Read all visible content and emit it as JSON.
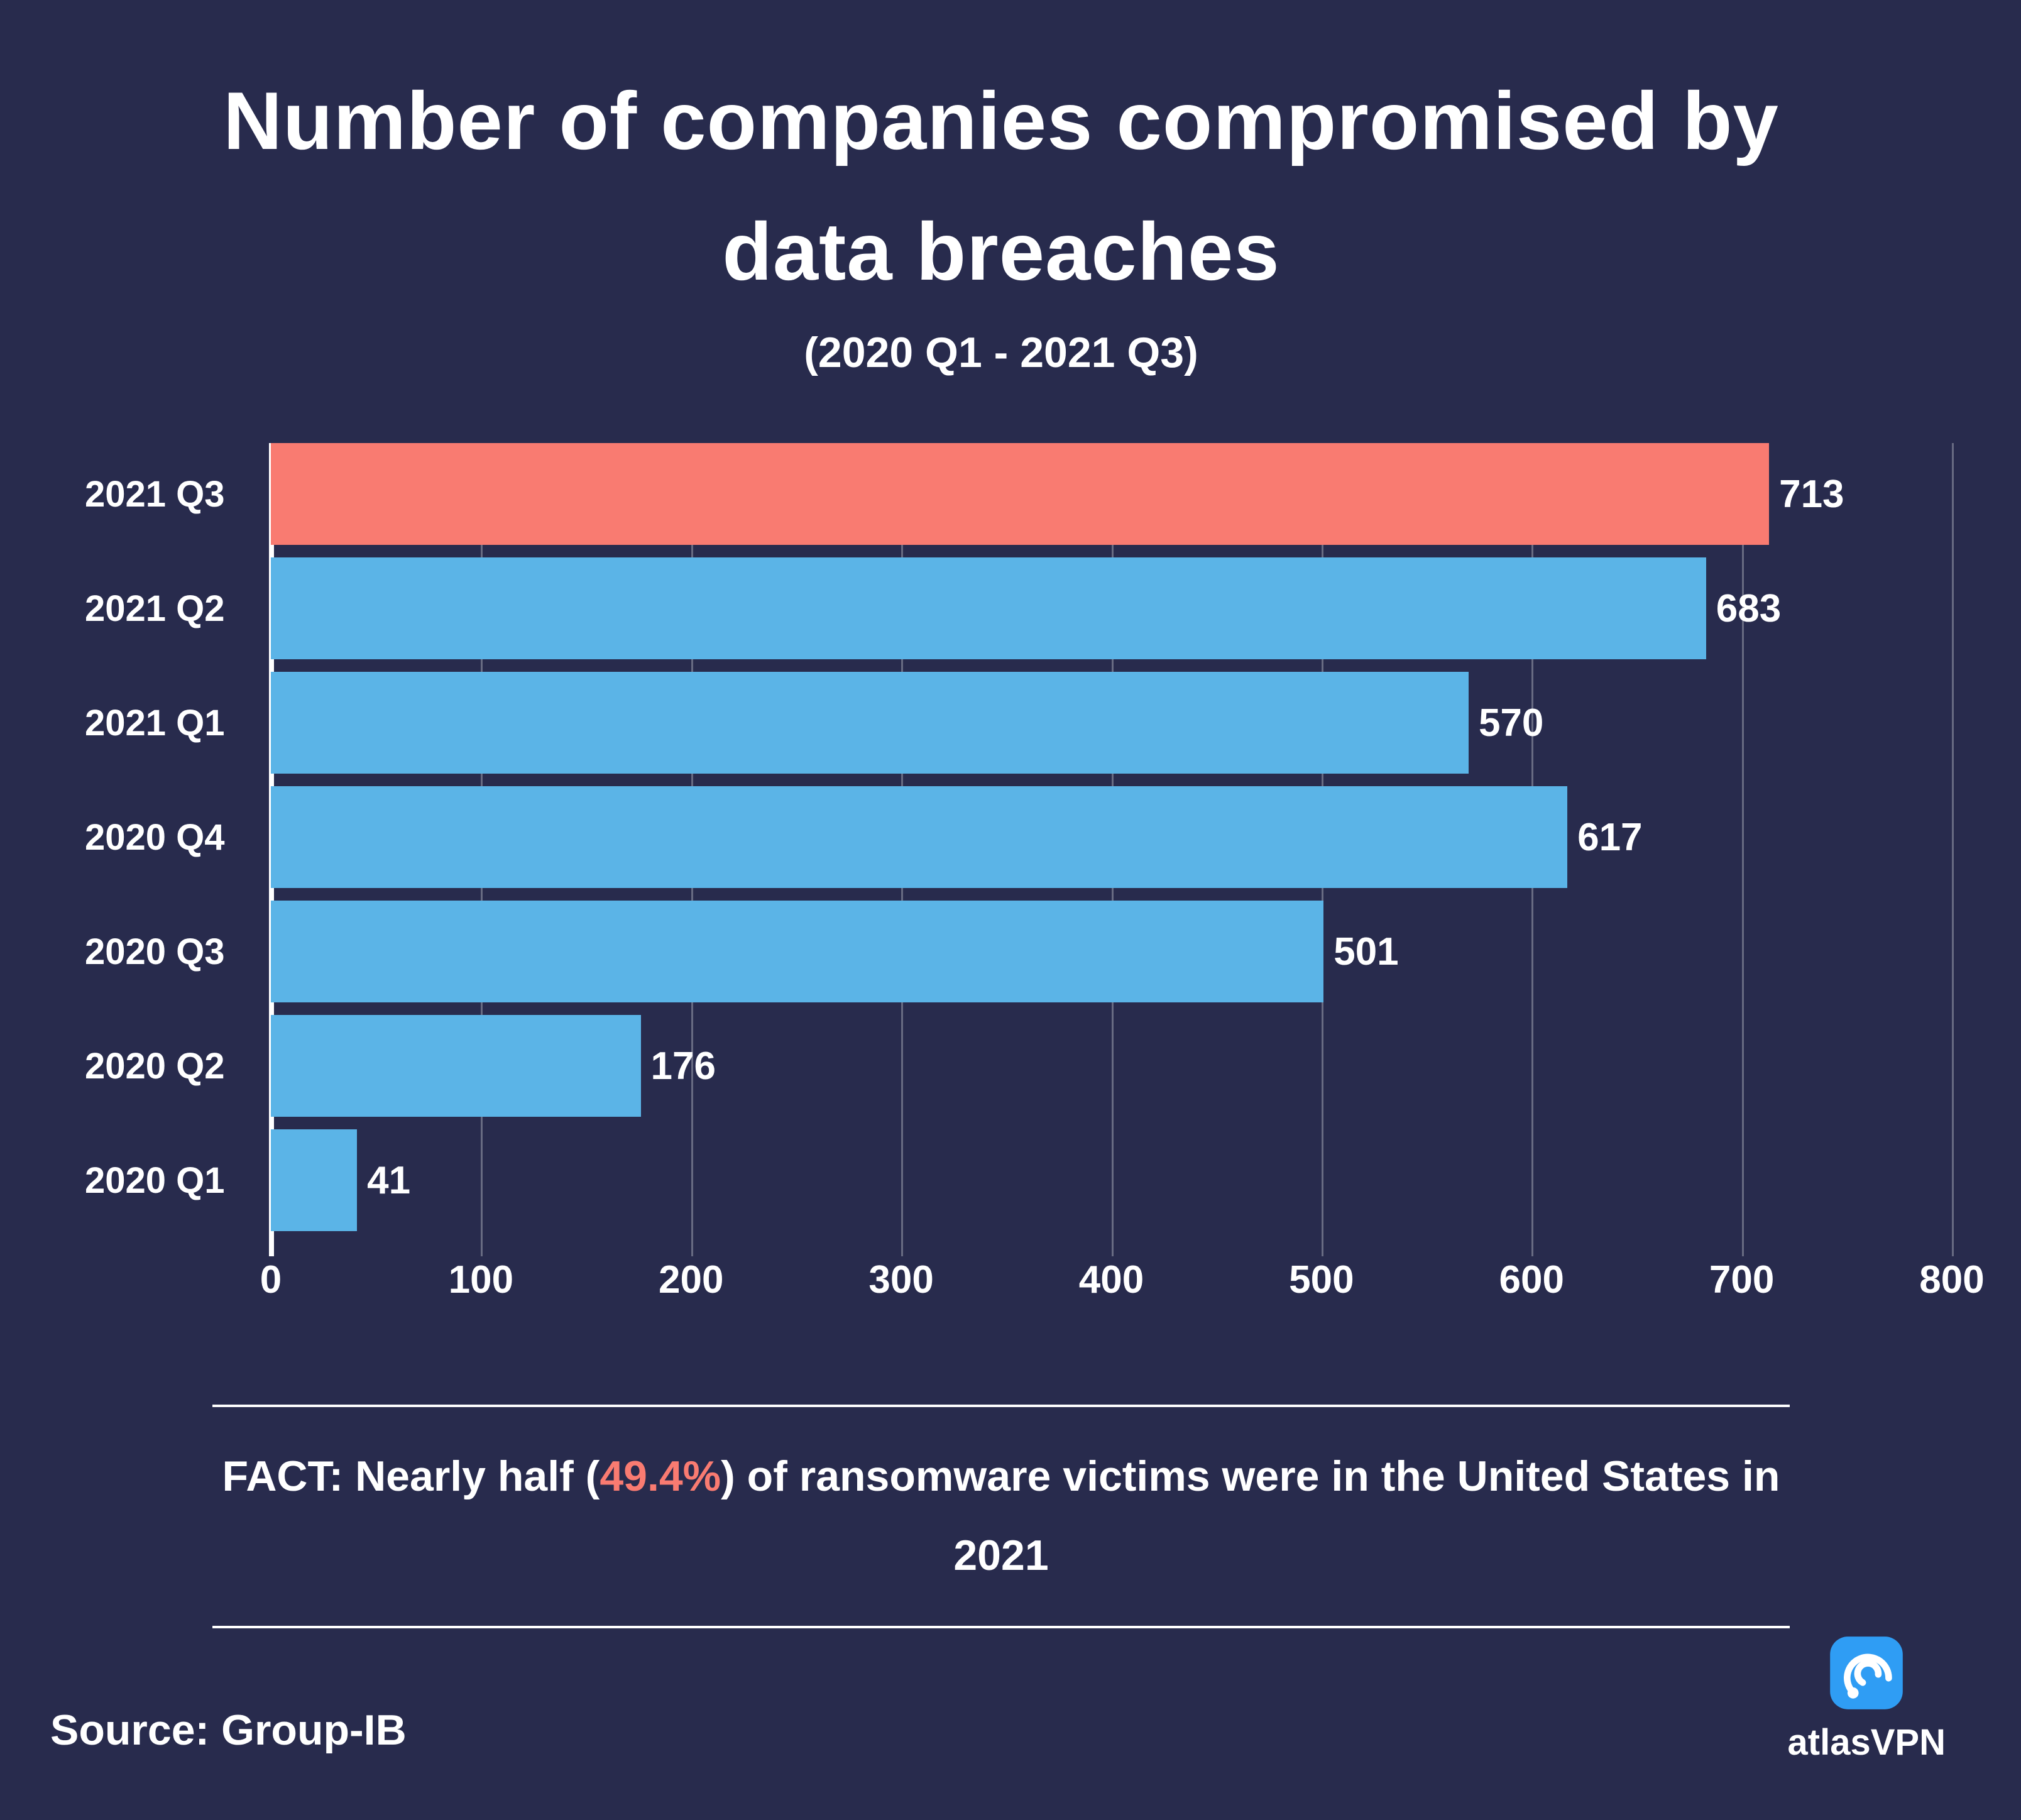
{
  "chart_data": {
    "type": "bar",
    "orientation": "horizontal",
    "title": "Number of companies compromised by data breaches",
    "subtitle": "(2020 Q1 - 2021 Q3)",
    "categories": [
      "2021 Q3",
      "2021 Q2",
      "2021 Q1",
      "2020 Q4",
      "2020 Q3",
      "2020 Q2",
      "2020 Q1"
    ],
    "values": [
      713,
      683,
      570,
      617,
      501,
      176,
      41
    ],
    "xlabel": "",
    "ylabel": "",
    "xlim": [
      0,
      800
    ],
    "xticks": [
      0,
      100,
      200,
      300,
      400,
      500,
      600,
      700,
      800
    ],
    "grid": "vertical",
    "legend": "none",
    "highlight_index": 0,
    "colors": {
      "highlight": "#F97B71",
      "bar": "#5BB4E7",
      "background": "#282B4D",
      "text": "#FFFFFF",
      "grid": "rgba(255,255,255,0.30)"
    }
  },
  "fact": {
    "before": "FACT: Nearly half (",
    "highlight": "49.4%",
    "after": ") of ransomware victims were in the United States in 2021"
  },
  "source": {
    "label": "Source: Group-IB"
  },
  "brand": {
    "name": "atlasVPN",
    "icon_color": "#2F9DF4"
  }
}
